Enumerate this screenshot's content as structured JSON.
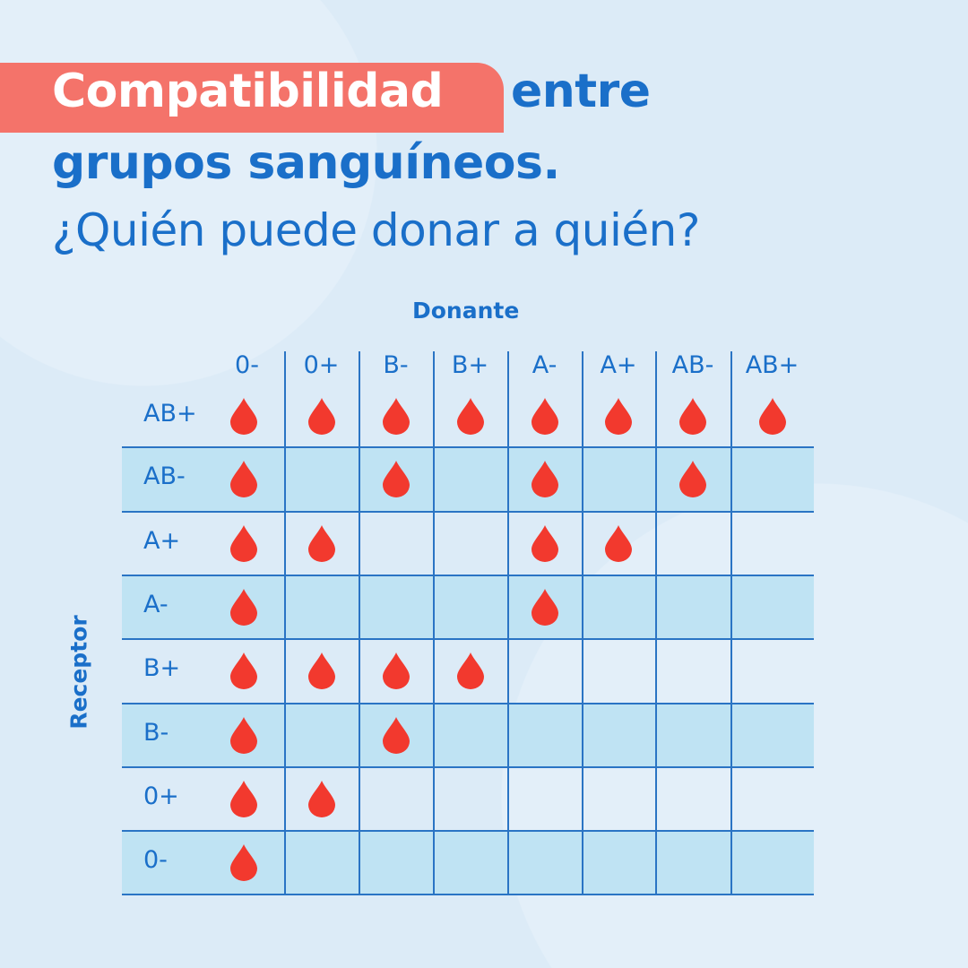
{
  "title": {
    "highlight": "Compatibilidad",
    "rest_line1": "entre",
    "line2": "grupos sanguíneos.",
    "line3": "¿Quién puede donar a quién?"
  },
  "axes": {
    "donor_label": "Donante",
    "recipient_label": "Receptor"
  },
  "colors": {
    "blue": "#1a6fc9",
    "highlight": "#f4736a",
    "drop": "#f2392e",
    "shade": "#bfe3f3"
  },
  "chart_data": {
    "type": "table",
    "columns": [
      "0-",
      "0+",
      "B-",
      "B+",
      "A-",
      "A+",
      "AB-",
      "AB+"
    ],
    "rows": [
      "AB+",
      "AB-",
      "A+",
      "A-",
      "B+",
      "B-",
      "0+",
      "0-"
    ],
    "compatible": [
      [
        1,
        1,
        1,
        1,
        1,
        1,
        1,
        1
      ],
      [
        1,
        0,
        1,
        0,
        1,
        0,
        1,
        0
      ],
      [
        1,
        1,
        0,
        0,
        1,
        1,
        0,
        0
      ],
      [
        1,
        0,
        0,
        0,
        1,
        0,
        0,
        0
      ],
      [
        1,
        1,
        1,
        1,
        0,
        0,
        0,
        0
      ],
      [
        1,
        0,
        1,
        0,
        0,
        0,
        0,
        0
      ],
      [
        1,
        1,
        0,
        0,
        0,
        0,
        0,
        0
      ],
      [
        1,
        0,
        0,
        0,
        0,
        0,
        0,
        0
      ]
    ],
    "icon": "blood-drop-icon"
  }
}
